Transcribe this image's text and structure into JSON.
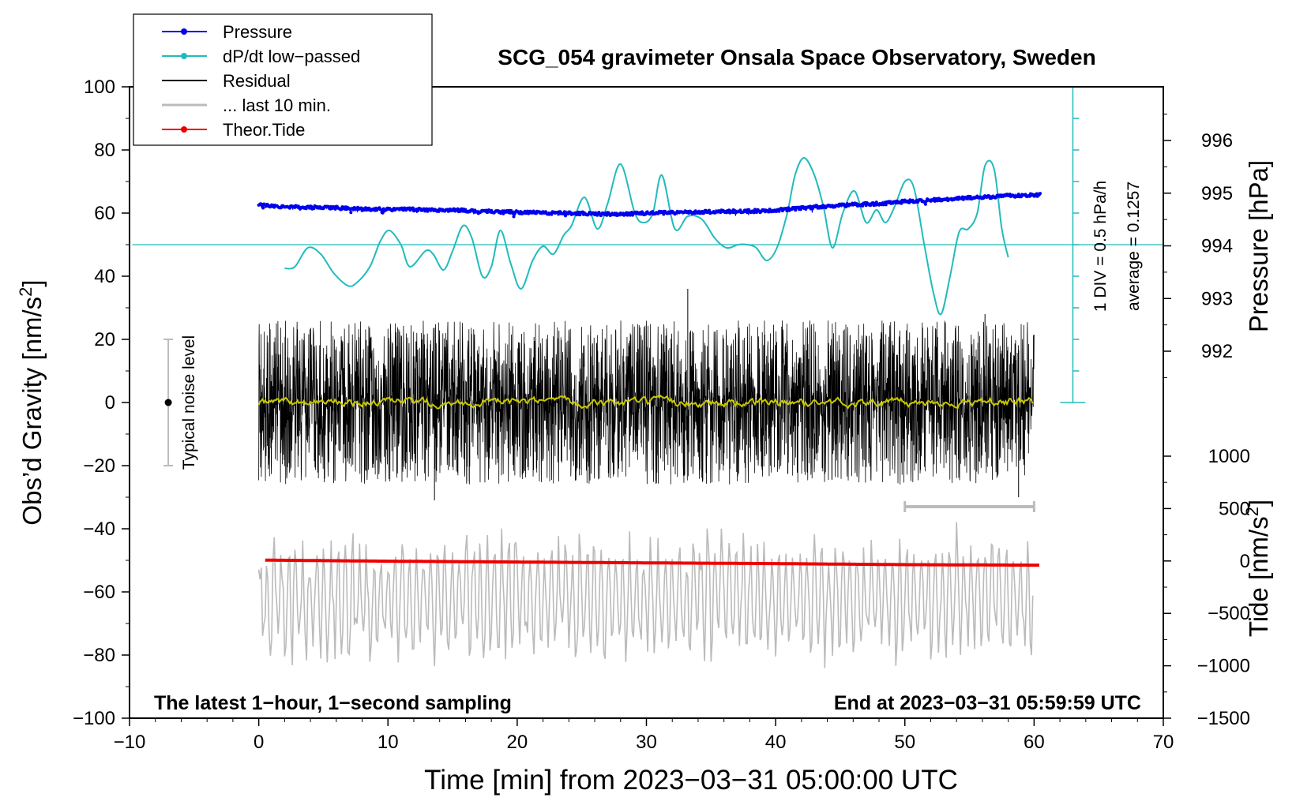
{
  "chart_data": {
    "type": "line",
    "title": "SCG_054 gravimeter Onsala Space Observatory, Sweden",
    "xlabel": "Time [min] from 2023−03−31 05:00:00 UTC",
    "ylabel_left": "Obs’d Gravity [nm/s",
    "ylabel_left_sup": "2",
    "ylabel_left_tail": "]",
    "ylabel_right_pressure": "Pressure [hPa]",
    "ylabel_right_tide": "Tide [nm/s",
    "ylabel_right_tide_sup": "2",
    "ylabel_right_tide_tail": "]",
    "xlim": [
      -10,
      70
    ],
    "ylim": [
      -100,
      100
    ],
    "x_ticks": [
      -10,
      0,
      10,
      20,
      30,
      40,
      50,
      60,
      70
    ],
    "x_tick_labels": [
      "−10",
      "0",
      "10",
      "20",
      "30",
      "40",
      "50",
      "60",
      "70"
    ],
    "y_ticks": [
      -100,
      -80,
      -60,
      -40,
      -20,
      0,
      20,
      40,
      60,
      80,
      100
    ],
    "y_tick_labels": [
      "−100",
      "−80",
      "−60",
      "−40",
      "−20",
      "0",
      "20",
      "40",
      "60",
      "80",
      "100"
    ],
    "pressure_axis": {
      "ticks": [
        992,
        993,
        994,
        995,
        996
      ],
      "tick_labels": [
        "992",
        "993",
        "994",
        "995",
        "996"
      ],
      "range": [
        991.0,
        997.0
      ]
    },
    "tide_axis": {
      "ticks": [
        -1500,
        -1000,
        -500,
        0,
        500,
        1000
      ],
      "tick_labels": [
        "−1500",
        "−1000",
        "−500",
        "0",
        "500",
        "1000"
      ],
      "range": [
        -1500,
        1000
      ]
    },
    "legend": [
      {
        "label": "Pressure",
        "color": "#0000ee",
        "marker": true
      },
      {
        "label": "dP/dt low−passed",
        "color": "#22bbbb",
        "marker": true
      },
      {
        "label": "Residual",
        "color": "#000000",
        "marker": false
      },
      {
        "label": "... last 10 min.",
        "color": "#bbbbbb",
        "marker": false
      },
      {
        "label": "Theor.Tide",
        "color": "#ee0000",
        "marker": true
      }
    ],
    "annotations": {
      "bottom_left": "The latest 1−hour, 1−second sampling",
      "bottom_right": "End at 2023−03−31 05:59:59 UTC",
      "noise_label": "Typical noise level",
      "noise_bar": {
        "x": -7,
        "y_center": 0,
        "y_range": [
          -20,
          20
        ]
      },
      "dpdt_scale": "1 DIV = 0.5 hPa/h",
      "dpdt_average": "average = 0.1257",
      "dpdt_scale_axis": {
        "x": 63,
        "y_range": [
          0,
          100
        ],
        "divisions": 10
      },
      "last10_bar": {
        "x_range": [
          50,
          60
        ],
        "y": -33
      }
    },
    "series": [
      {
        "name": "Pressure",
        "color": "#0000ee",
        "axis": "pressure",
        "x": [
          0,
          2,
          4,
          6,
          8,
          10,
          12,
          14,
          16,
          18,
          20,
          22,
          24,
          26,
          28,
          30,
          32,
          34,
          36,
          38,
          40,
          42,
          44,
          46,
          48,
          50,
          52,
          54,
          56,
          58,
          60.5
        ],
        "y": [
          994.78,
          994.74,
          994.73,
          994.72,
          994.7,
          994.69,
          994.69,
          994.68,
          994.67,
          994.65,
          994.64,
          994.63,
          994.62,
          994.61,
          994.6,
          994.62,
          994.63,
          994.64,
          994.65,
          994.66,
          994.67,
          994.72,
          994.75,
          994.78,
          994.8,
          994.84,
          994.87,
          994.9,
          994.92,
          994.95,
          994.97
        ]
      },
      {
        "name": "dP/dt low-passed",
        "color": "#22bbbb",
        "axis": "left",
        "baseline": 50,
        "x": [
          2,
          2.8,
          3.8,
          4.8,
          5.8,
          6.9,
          7.6,
          8.6,
          9.4,
          10.1,
          11,
          11.7,
          12.9,
          13.5,
          14.3,
          15,
          15.8,
          16.5,
          17.3,
          18,
          18.7,
          19.5,
          20.3,
          21.2,
          22,
          22.8,
          23.6,
          24.2,
          25.2,
          26.2,
          27,
          28,
          29.1,
          29.8,
          30.5,
          31.2,
          32.2,
          33.2,
          34.3,
          35.3,
          36.2,
          37.1,
          37.8,
          38.5,
          39.3,
          40.1,
          40.9,
          41.5,
          42.2,
          43,
          43.7,
          44.4,
          45.2,
          46.1,
          47,
          47.8,
          48.5,
          49.2,
          50,
          50.7,
          51.5,
          52.2,
          52.8,
          53.5,
          54.2,
          54.9,
          55.6,
          56.2,
          56.9,
          57.5,
          58
        ],
        "y": [
          42.5,
          43,
          49,
          47,
          41,
          37,
          38,
          43,
          51,
          54.5,
          50,
          43,
          48,
          47,
          42,
          48,
          56,
          52,
          40,
          43,
          54.5,
          44,
          36,
          45,
          49.5,
          47,
          53,
          56,
          65,
          55,
          63,
          75.5,
          60,
          57,
          60,
          72,
          55,
          59,
          58,
          52,
          49,
          50,
          50,
          49,
          45,
          49,
          60,
          72,
          77.5,
          72,
          62,
          49,
          60,
          67,
          57,
          61,
          57,
          62,
          70,
          68,
          50,
          35,
          28,
          40,
          54,
          55,
          60,
          75,
          74,
          55,
          46
        ]
      },
      {
        "name": "Residual",
        "color": "#000000",
        "axis": "left",
        "x_range": [
          0,
          60
        ],
        "envelope": [
          -28,
          30
        ],
        "spikes": {
          "x": [
            33.2,
            13.6,
            56.2,
            58.8
          ],
          "y": [
            36,
            -31,
            28,
            -30
          ]
        }
      },
      {
        "name": "Residual low-passed",
        "color": "#c8c800",
        "axis": "left",
        "x_range": [
          0,
          60
        ],
        "level": 0
      },
      {
        "name": "... last 10 min.",
        "color": "#bbbbbb",
        "axis": "left",
        "x_range": [
          0,
          60
        ],
        "center": -62,
        "envelope": [
          -90,
          -33
        ]
      },
      {
        "name": "Theor.Tide",
        "color": "#ee0000",
        "axis": "tide",
        "x": [
          0.5,
          10,
          20,
          30,
          40,
          50,
          60.5
        ],
        "y": [
          8,
          -2,
          -10,
          -18,
          -25,
          -35,
          -40
        ]
      }
    ]
  }
}
